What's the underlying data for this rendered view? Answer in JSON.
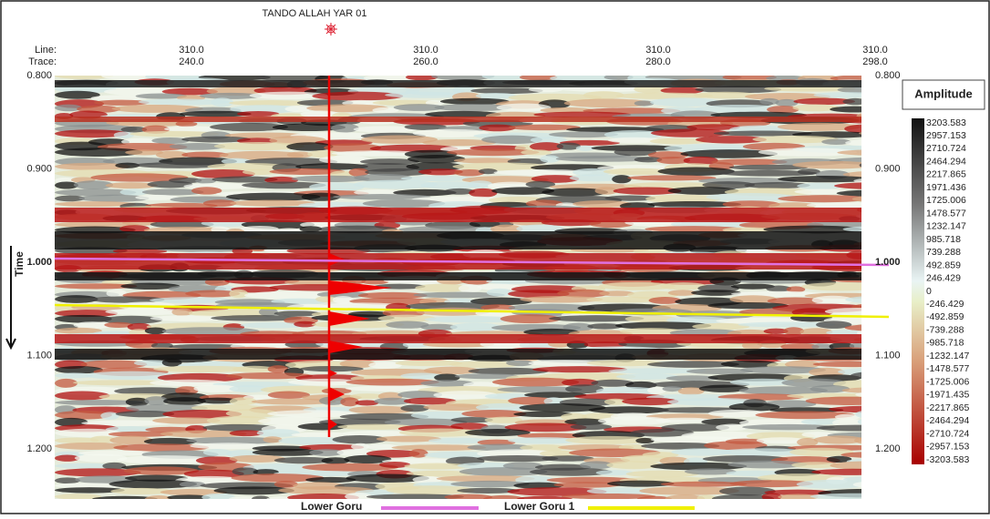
{
  "header": {
    "title": "TANDO ALLAH YAR 01",
    "line_label": "Line:",
    "trace_label": "Trace:",
    "columns": [
      {
        "line": "310.0",
        "trace": "240.0"
      },
      {
        "line": "310.0",
        "trace": "260.0"
      },
      {
        "line": "310.0",
        "trace": "280.0"
      },
      {
        "line": "310.0",
        "trace": "298.0"
      }
    ]
  },
  "axis": {
    "label": "Time",
    "ticks": [
      "0.800",
      "0.900",
      "1.000",
      "1.100",
      "1.200"
    ]
  },
  "colorbar": {
    "title": "Amplitude",
    "labels": [
      "3203.583",
      "2957.153",
      "2710.724",
      "2464.294",
      "2217.865",
      "1971.436",
      "1725.006",
      "1478.577",
      "1232.147",
      "985.718",
      "739.288",
      "492.859",
      "246.429",
      "0",
      "-246.429",
      "-492.859",
      "-739.288",
      "-985.718",
      "-1232.147",
      "-1478.577",
      "-1725.006",
      "-1971.435",
      "-2217.865",
      "-2464.294",
      "-2710.724",
      "-2957.153",
      "-3203.583"
    ]
  },
  "legend": [
    {
      "name": "Lower Goru"
    },
    {
      "name": "Lower Goru 1"
    }
  ]
}
